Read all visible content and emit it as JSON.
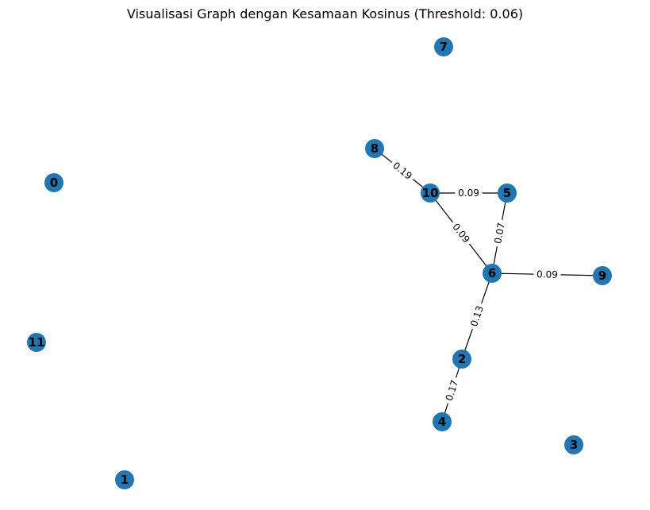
{
  "title": "Visualisasi Graph dengan Kesamaan Kosinus (Threshold: 0.06)",
  "colors": {
    "node": "#1f77b4",
    "edge": "#000000",
    "background": "#ffffff"
  },
  "graph": {
    "nodes": [
      {
        "id": "0",
        "label": "0"
      },
      {
        "id": "1",
        "label": "1"
      },
      {
        "id": "2",
        "label": "2"
      },
      {
        "id": "3",
        "label": "3"
      },
      {
        "id": "4",
        "label": "4"
      },
      {
        "id": "5",
        "label": "5"
      },
      {
        "id": "6",
        "label": "6"
      },
      {
        "id": "7",
        "label": "7"
      },
      {
        "id": "8",
        "label": "8"
      },
      {
        "id": "9",
        "label": "9"
      },
      {
        "id": "10",
        "label": "10"
      },
      {
        "id": "11",
        "label": "11"
      }
    ],
    "edges": [
      {
        "source": "8",
        "target": "10",
        "weight": "0.19"
      },
      {
        "source": "10",
        "target": "5",
        "weight": "0.09"
      },
      {
        "source": "10",
        "target": "6",
        "weight": "0.09"
      },
      {
        "source": "5",
        "target": "6",
        "weight": "0.07"
      },
      {
        "source": "6",
        "target": "9",
        "weight": "0.09"
      },
      {
        "source": "6",
        "target": "2",
        "weight": "0.13"
      },
      {
        "source": "2",
        "target": "4",
        "weight": "0.17"
      }
    ]
  }
}
